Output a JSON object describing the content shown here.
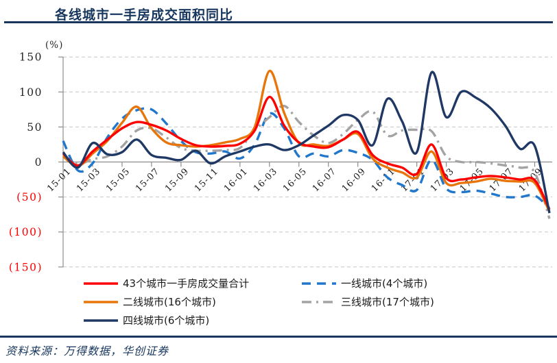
{
  "title": "各线城市一手房成交面积同比",
  "y_axis": {
    "unit_label": "(%)",
    "tick_labels": [
      "150",
      "100",
      "50",
      "0",
      "(50)",
      "(100)",
      "(150)"
    ],
    "tick_values": [
      150,
      100,
      50,
      0,
      -50,
      -100,
      -150
    ],
    "positive_label_color": "#262626",
    "negative_label_color": "#FF0000"
  },
  "x_axis": {
    "tick_labels": [
      "15-01",
      "15-03",
      "15-05",
      "15-07",
      "15-09",
      "15-11",
      "16-01",
      "16-03",
      "16-05",
      "16-07",
      "16-09",
      "16-11",
      "17-01",
      "17-03",
      "17-05",
      "17-07",
      "17-09"
    ],
    "tick_step_months": 2
  },
  "footer": {
    "source_text": "资料来源：万得数据，华创证券"
  },
  "colors": {
    "title": "#17365D",
    "rule": "#17365D",
    "gridline": "#C6C6C6",
    "axis": "#8C8C8C",
    "background": "#FFFFFF"
  },
  "chart_data": {
    "type": "line",
    "title": "各线城市一手房成交面积同比",
    "ylabel": "(%)",
    "ylim": [
      -150,
      150
    ],
    "grid": "horizontal-dashed",
    "legend_position": "bottom",
    "x": [
      "15-01",
      "15-02",
      "15-03",
      "15-04",
      "15-05",
      "15-06",
      "15-07",
      "15-08",
      "15-09",
      "15-10",
      "15-11",
      "15-12",
      "16-01",
      "16-02",
      "16-03",
      "16-04",
      "16-05",
      "16-06",
      "16-07",
      "16-08",
      "16-09",
      "16-10",
      "16-11",
      "16-12",
      "17-01",
      "17-02",
      "17-03",
      "17-04",
      "17-05",
      "17-06",
      "17-07",
      "17-08",
      "17-09",
      "17-10"
    ],
    "series": [
      {
        "name": "43个城市一手房成交量合计",
        "color": "#FF0000",
        "dash": "solid",
        "values": [
          12,
          -5,
          15,
          32,
          48,
          57,
          53,
          45,
          33,
          24,
          22,
          23,
          26,
          45,
          93,
          52,
          28,
          22,
          21,
          32,
          43,
          10,
          -2,
          -8,
          -17,
          25,
          -23,
          -25,
          -22,
          -20,
          -22,
          -25,
          -26,
          -68
        ]
      },
      {
        "name": "一线城市(4个城市)",
        "color": "#2077CC",
        "dash": "dashed",
        "values": [
          30,
          -12,
          -2,
          35,
          62,
          74,
          75,
          55,
          30,
          14,
          12,
          15,
          5,
          25,
          69,
          48,
          8,
          12,
          8,
          17,
          13,
          3,
          -22,
          -33,
          -40,
          3,
          -38,
          -43,
          -41,
          -45,
          -50,
          -50,
          -48,
          -66
        ]
      },
      {
        "name": "二线城市(16个城市)",
        "color": "#E8750A",
        "dash": "solid",
        "values": [
          8,
          -6,
          12,
          30,
          56,
          79,
          48,
          28,
          24,
          22,
          24,
          28,
          33,
          50,
          130,
          70,
          27,
          25,
          23,
          32,
          40,
          5,
          -8,
          -15,
          -22,
          15,
          -30,
          -30,
          -28,
          -24,
          -27,
          -28,
          -30,
          -71
        ]
      },
      {
        "name": "三线城市(17个城市)",
        "color": "#A3A3A3",
        "dash": "dashdot",
        "values": [
          9,
          -3,
          4,
          8,
          22,
          45,
          48,
          35,
          20,
          16,
          16,
          17,
          20,
          45,
          64,
          80,
          57,
          38,
          27,
          40,
          60,
          72,
          38,
          45,
          46,
          44,
          8,
          0,
          0,
          -2,
          -5,
          -8,
          -15,
          -81
        ]
      },
      {
        "name": "四线城市(6个城市)",
        "color": "#1F3864",
        "dash": "solid",
        "values": [
          14,
          -8,
          27,
          11,
          14,
          32,
          10,
          6,
          3,
          16,
          -2,
          8,
          15,
          22,
          25,
          17,
          24,
          38,
          52,
          67,
          60,
          24,
          90,
          58,
          14,
          128,
          64,
          100,
          92,
          77,
          52,
          19,
          23,
          -73
        ]
      }
    ],
    "draw_order": [
      1,
      3,
      2,
      0,
      4
    ],
    "legend_grid_row_major": [
      [
        0,
        1
      ],
      [
        2,
        3
      ],
      [
        4,
        null
      ]
    ]
  }
}
